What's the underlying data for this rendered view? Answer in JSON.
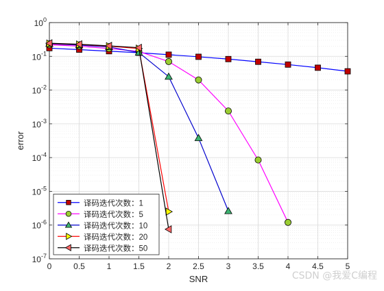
{
  "chart_data": {
    "type": "line",
    "title": "",
    "xlabel": "SNR",
    "ylabel": "error",
    "yscale": "log",
    "xlim": [
      0,
      5
    ],
    "ylim": [
      1e-07,
      1
    ],
    "x_ticks": [
      0,
      0.5,
      1,
      1.5,
      2,
      2.5,
      3,
      3.5,
      4,
      4.5,
      5
    ],
    "x_tick_labels": [
      "0",
      "0.5",
      "1",
      "1.5",
      "2",
      "2.5",
      "3",
      "3.5",
      "4",
      "4.5",
      "5"
    ],
    "y_ticks": [
      1e-07,
      1e-06,
      1e-05,
      0.0001,
      0.001,
      0.01,
      0.1,
      1
    ],
    "y_tick_labels": [
      {
        "base": "10",
        "exp": "-7"
      },
      {
        "base": "10",
        "exp": "-6"
      },
      {
        "base": "10",
        "exp": "-5"
      },
      {
        "base": "10",
        "exp": "-4"
      },
      {
        "base": "10",
        "exp": "-3"
      },
      {
        "base": "10",
        "exp": "-2"
      },
      {
        "base": "10",
        "exp": "-1"
      },
      {
        "base": "10",
        "exp": "0"
      }
    ],
    "grid": true,
    "minor_grid": true,
    "legend_position": "bottom-left",
    "series": [
      {
        "name": "译码迭代次数：1",
        "color": "#0000ff",
        "marker": "square",
        "marker_color": "#c00000",
        "x": [
          0,
          0.5,
          1,
          1.5,
          2,
          2.5,
          3,
          3.5,
          4,
          4.5,
          5
        ],
        "y": [
          0.175,
          0.158,
          0.142,
          0.128,
          0.112,
          0.097,
          0.083,
          0.069,
          0.057,
          0.046,
          0.036
        ]
      },
      {
        "name": "译码迭代次数：5",
        "color": "#ff00ff",
        "marker": "circle",
        "marker_color": "#9acd32",
        "x": [
          0,
          0.5,
          1,
          1.5,
          2,
          2.5,
          3,
          3.5,
          4
        ],
        "y": [
          0.22,
          0.2,
          0.17,
          0.14,
          0.07,
          0.02,
          0.0024,
          8.5e-05,
          1.2e-06
        ]
      },
      {
        "name": "译码迭代次数：10",
        "color": "#0000cd",
        "marker": "triangle-up",
        "marker_color": "#3cb371",
        "x": [
          0,
          0.5,
          1,
          1.5,
          2,
          2.5,
          3
        ],
        "y": [
          0.235,
          0.215,
          0.19,
          0.13,
          0.025,
          0.00038,
          2.6e-06
        ]
      },
      {
        "name": "译码迭代次数：20",
        "color": "#ff0000",
        "marker": "triangle-right",
        "marker_color": "#ffff00",
        "x": [
          0,
          0.5,
          1,
          1.5,
          2
        ],
        "y": [
          0.24,
          0.225,
          0.2,
          0.17,
          2.5e-06
        ]
      },
      {
        "name": "译码迭代次数：50",
        "color": "#000000",
        "marker": "triangle-left",
        "marker_color": "#ff6666",
        "x": [
          0,
          0.5,
          1,
          1.5,
          2
        ],
        "y": [
          0.245,
          0.228,
          0.205,
          0.18,
          7.5e-07
        ]
      }
    ]
  },
  "watermark": "CSDN @我爱C编程"
}
